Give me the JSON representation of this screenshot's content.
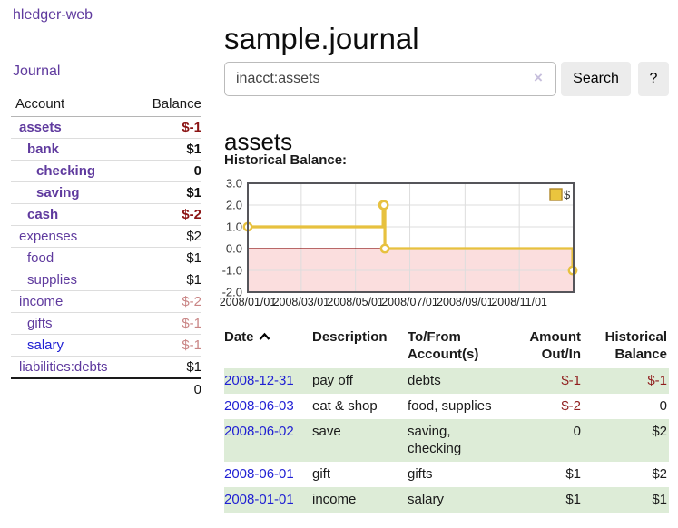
{
  "brand": "hledger-web",
  "nav": {
    "journal": "Journal"
  },
  "page": {
    "title": "sample.journal",
    "account_title": "assets",
    "chart_heading": "Historical Balance:"
  },
  "search": {
    "value": "inacct:assets",
    "clear_icon": "×",
    "search_label": "Search",
    "help_label": "?"
  },
  "colors": {
    "link-purple": "#5f3a9e",
    "link-blue": "#1f1fd3",
    "neg-strong": "#8b1414",
    "neg-soft": "#c98585",
    "neg-table": "#8f1d1d",
    "row-green": "#ddecd7",
    "btn-bg": "#ececec",
    "clear-x": "#c6bedc"
  },
  "sidebar": {
    "header": {
      "account": "Account",
      "balance": "Balance"
    },
    "accounts": [
      {
        "name": "assets",
        "balance": "$-1",
        "level": 0,
        "bold": true,
        "balance_class": "neg-strong"
      },
      {
        "name": "bank",
        "balance": "$1",
        "level": 1,
        "bold": true
      },
      {
        "name": "checking",
        "balance": "0",
        "level": 2,
        "bold": true
      },
      {
        "name": "saving",
        "balance": "$1",
        "level": 2,
        "bold": true
      },
      {
        "name": "cash",
        "balance": "$-2",
        "level": 1,
        "bold": true,
        "balance_class": "neg-strong"
      },
      {
        "name": "expenses",
        "balance": "$2",
        "level": 0,
        "bold": false
      },
      {
        "name": "food",
        "balance": "$1",
        "level": 1,
        "bold": false
      },
      {
        "name": "supplies",
        "balance": "$1",
        "level": 1,
        "bold": false
      },
      {
        "name": "income",
        "balance": "$-2",
        "level": 0,
        "bold": false,
        "balance_class": "neg-soft"
      },
      {
        "name": "gifts",
        "balance": "$-1",
        "level": 1,
        "bold": false,
        "balance_class": "neg-soft"
      },
      {
        "name": "salary",
        "balance": "$-1",
        "level": 1,
        "bold": false,
        "balance_class": "neg-soft",
        "link_color": "blue"
      },
      {
        "name": "liabilities:debts",
        "balance": "$1",
        "level": 0,
        "bold": false
      }
    ],
    "total": "0"
  },
  "chart_data": {
    "type": "line",
    "style": "step-after",
    "title": "Historical Balance:",
    "x_range": [
      "2008-01-01",
      "2009-01-01"
    ],
    "ylim": [
      -2,
      3
    ],
    "yticks": [
      {
        "value": 3,
        "label": "3.0"
      },
      {
        "value": 2,
        "label": "2.0"
      },
      {
        "value": 1,
        "label": "1.0"
      },
      {
        "value": 0,
        "label": "0.0"
      },
      {
        "value": -1,
        "label": "-1.0"
      },
      {
        "value": -2,
        "label": "-2.0"
      }
    ],
    "xticks": [
      {
        "date": "2008-01-01",
        "label": "2008/01/01"
      },
      {
        "date": "2008-03-01",
        "label": "2008/03/01"
      },
      {
        "date": "2008-05-01",
        "label": "2008/05/01"
      },
      {
        "date": "2008-07-01",
        "label": "2008/07/01"
      },
      {
        "date": "2008-09-01",
        "label": "2008/09/01"
      },
      {
        "date": "2008-11-01",
        "label": "2008/11/01"
      }
    ],
    "series": [
      {
        "name": "$",
        "points": [
          {
            "date": "2008-01-01",
            "value": 1
          },
          {
            "date": "2008-06-01",
            "value": 2
          },
          {
            "date": "2008-06-02",
            "value": 2
          },
          {
            "date": "2008-06-03",
            "value": 0
          },
          {
            "date": "2008-12-31",
            "value": -1
          }
        ]
      }
    ],
    "legend": {
      "label": "$",
      "position": "top-right"
    },
    "grid": true,
    "colors": {
      "line": "#e7c13f",
      "marker_fill": "#ffffff",
      "negative_fill": "#fbdede",
      "zero_line": "#8f0e0e",
      "grid": "#dddddd",
      "border": "#55555a",
      "legend_fill": "#eac53e",
      "legend_border": "#b1892b",
      "tick_text": "#333333"
    }
  },
  "register": {
    "columns": [
      {
        "label": "Date",
        "align": "left",
        "sort": "asc"
      },
      {
        "label": "Description",
        "align": "left"
      },
      {
        "label": "To/From Account(s)",
        "align": "left"
      },
      {
        "label": "Amount Out/In",
        "align": "right"
      },
      {
        "label": "Historical Balance",
        "align": "right"
      }
    ],
    "rows": [
      {
        "date": "2008-12-31",
        "description": "pay off",
        "accounts": "debts",
        "amount": "$-1",
        "amount_negative": true,
        "balance": "$-1",
        "balance_negative": true
      },
      {
        "date": "2008-06-03",
        "description": "eat & shop",
        "accounts": "food, supplies",
        "amount": "$-2",
        "amount_negative": true,
        "balance": "0",
        "balance_negative": false
      },
      {
        "date": "2008-06-02",
        "description": "save",
        "accounts": "saving, checking",
        "amount": "0",
        "amount_negative": false,
        "balance": "$2",
        "balance_negative": false
      },
      {
        "date": "2008-06-01",
        "description": "gift",
        "accounts": "gifts",
        "amount": "$1",
        "amount_negative": false,
        "balance": "$2",
        "balance_negative": false
      },
      {
        "date": "2008-01-01",
        "description": "income",
        "accounts": "salary",
        "amount": "$1",
        "amount_negative": false,
        "balance": "$1",
        "balance_negative": false
      }
    ]
  }
}
